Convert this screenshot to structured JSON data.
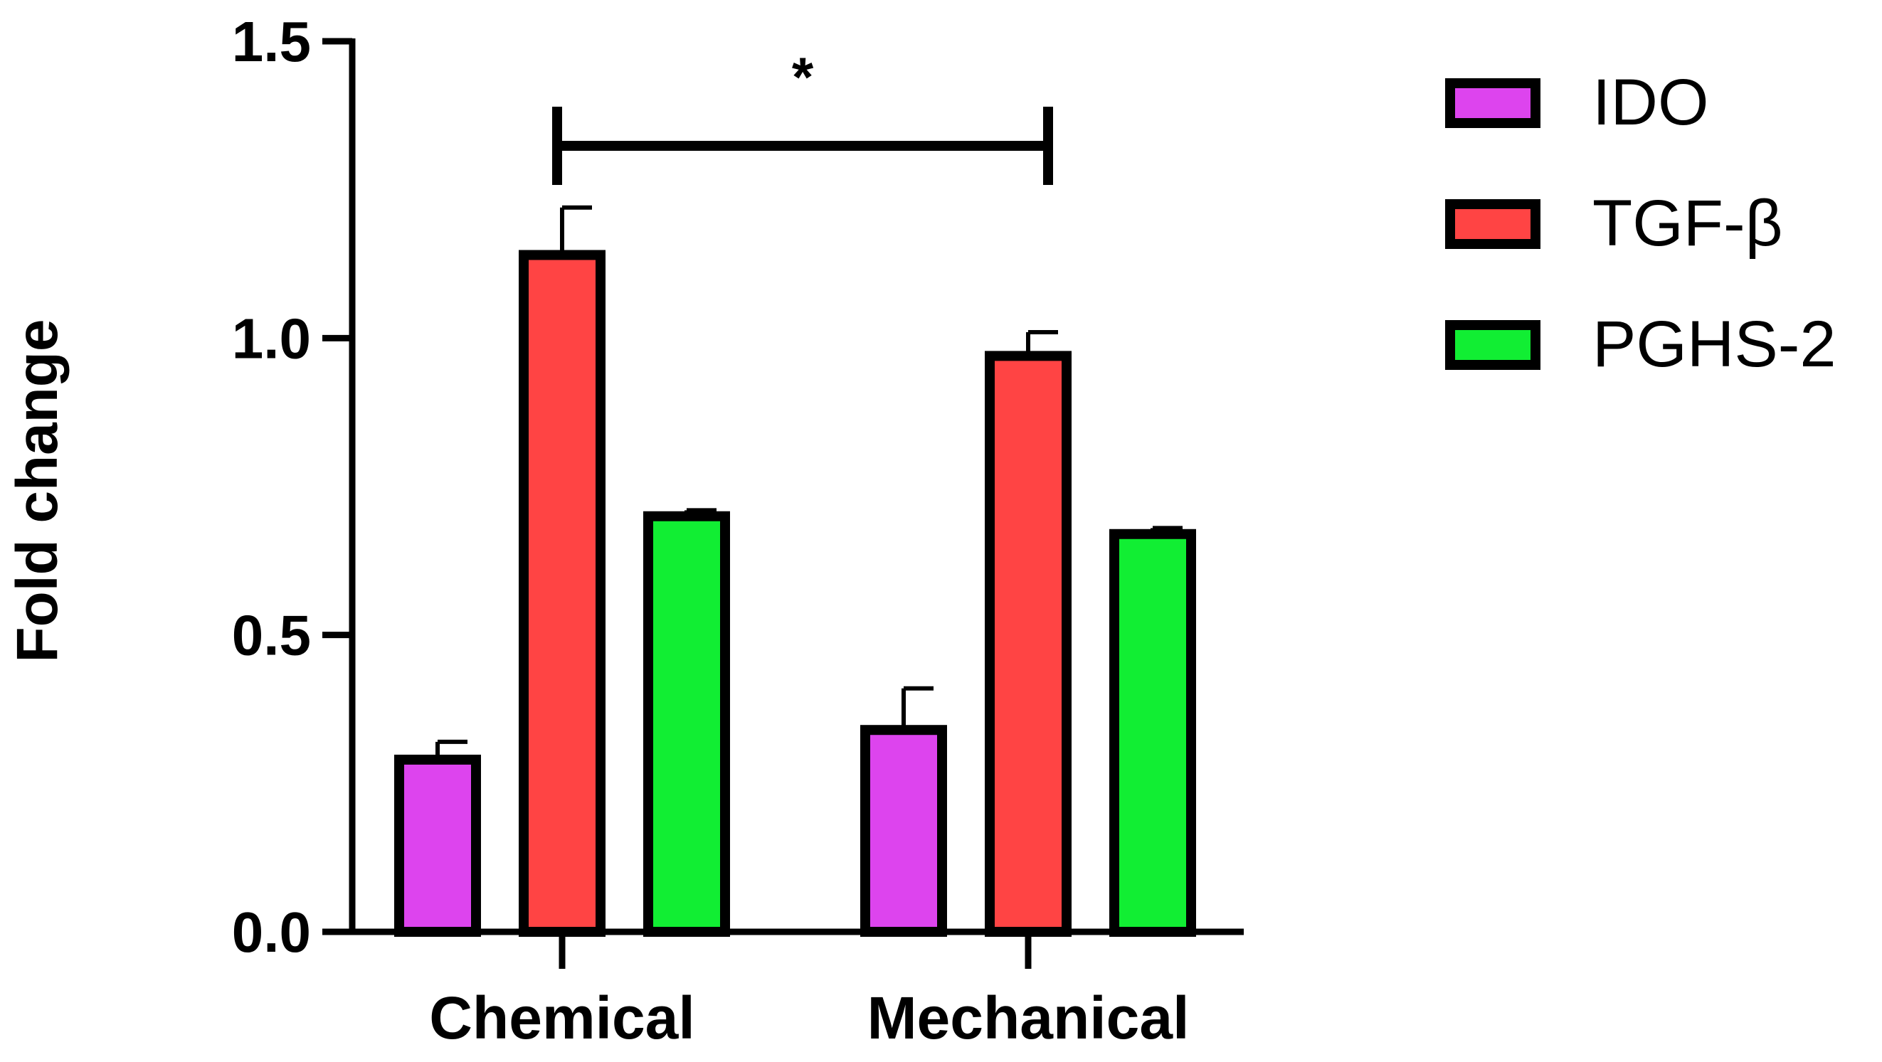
{
  "chart_data": {
    "type": "bar",
    "title": "",
    "xlabel": "",
    "ylabel": "Fold change",
    "ylim": [
      0,
      1.5
    ],
    "yticks": [
      "0.0",
      "0.5",
      "1.0",
      "1.5"
    ],
    "categories": [
      "Chemical",
      "Mechanical"
    ],
    "series": [
      {
        "name": "IDO",
        "color": "#dd44ee",
        "values": [
          0.29,
          0.34
        ],
        "errors": [
          0.03,
          0.07
        ]
      },
      {
        "name": "TGF-β",
        "color": "#ff4444",
        "values": [
          1.14,
          0.97
        ],
        "errors": [
          0.08,
          0.04
        ]
      },
      {
        "name": "PGHS-2",
        "color": "#11ee33",
        "values": [
          0.7,
          0.67
        ],
        "errors": [
          0.01,
          0.01
        ]
      }
    ],
    "significance": {
      "label": "*",
      "between": [
        "Chemical",
        "Mechanical"
      ],
      "series": "TGF-β"
    },
    "legend_position": "top-right",
    "grid": false
  }
}
